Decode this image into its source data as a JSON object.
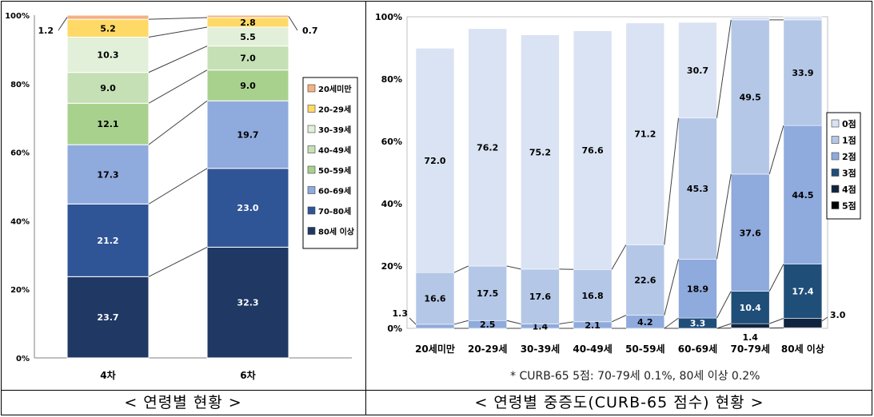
{
  "captions": {
    "left": "< 연령별 현황 >",
    "right": "< 연령별 중증도(CURB-65 점수) 현황 >"
  },
  "footnote": "* CURB-65 5점: 70-79세 0.1%, 80세 이상 0.2%",
  "chart_data": [
    {
      "type": "bar",
      "stacked": true,
      "ylim": [
        0,
        100
      ],
      "yticks": [
        "0%",
        "20%",
        "40%",
        "60%",
        "80%",
        "100%"
      ],
      "categories": [
        "4차",
        "6차"
      ],
      "legend_position": "right",
      "series": [
        {
          "name": "80세 이상",
          "color": "#1f3864",
          "values": [
            23.7,
            32.3
          ],
          "labels": [
            "23.7",
            "32.3"
          ]
        },
        {
          "name": "70-80세",
          "color": "#2f5597",
          "values": [
            21.2,
            23.0
          ],
          "labels": [
            "21.2",
            "23.0"
          ]
        },
        {
          "name": "60-69세",
          "color": "#8faadc",
          "values": [
            17.3,
            19.7
          ],
          "labels": [
            "17.3",
            "19.7"
          ]
        },
        {
          "name": "50-59세",
          "color": "#a9d18e",
          "values": [
            12.1,
            9.0
          ],
          "labels": [
            "12.1",
            "9.0"
          ]
        },
        {
          "name": "40-49세",
          "color": "#c5e0b4",
          "values": [
            9.0,
            7.0
          ],
          "labels": [
            "9.0",
            "7.0"
          ]
        },
        {
          "name": "30-39세",
          "color": "#e2f0d9",
          "values": [
            10.3,
            5.5
          ],
          "labels": [
            "10.3",
            "5.5"
          ]
        },
        {
          "name": "20-29세",
          "color": "#ffd966",
          "values": [
            5.2,
            2.8
          ],
          "labels": [
            "5.2",
            "2.8"
          ]
        },
        {
          "name": "20세미만",
          "color": "#f4b183",
          "values": [
            1.2,
            0.7
          ],
          "labels": [
            "",
            ""
          ]
        }
      ],
      "outside_labels": [
        {
          "series": "20세미만",
          "category": "4차",
          "text": "1.2",
          "side": "left"
        },
        {
          "series": "20세미만",
          "category": "6차",
          "text": "0.7",
          "side": "right"
        }
      ]
    },
    {
      "type": "bar",
      "stacked": true,
      "ylim": [
        0,
        100
      ],
      "yticks": [
        "0%",
        "20%",
        "40%",
        "60%",
        "80%",
        "100%"
      ],
      "categories": [
        "20세미만",
        "20-29세",
        "30-39세",
        "40-49세",
        "50-59세",
        "60-69세",
        "70-79세",
        "80세 이상"
      ],
      "legend_position": "right",
      "series": [
        {
          "name": "5점",
          "color": "#000000",
          "values": [
            0,
            0,
            0,
            0,
            0,
            0,
            0.1,
            0.2
          ],
          "labels": [
            "",
            "",
            "",
            "",
            "",
            "",
            "",
            ""
          ]
        },
        {
          "name": "4점",
          "color": "#10243f",
          "values": [
            0,
            0,
            0,
            0,
            0,
            0,
            1.4,
            3.0
          ],
          "labels": [
            "",
            "",
            "",
            "",
            "",
            "",
            "",
            ""
          ]
        },
        {
          "name": "3점",
          "color": "#1f4e79",
          "values": [
            0,
            0,
            0,
            0,
            0,
            3.3,
            10.4,
            17.4
          ],
          "labels": [
            "",
            "",
            "",
            "",
            "",
            "3.3",
            "10.4",
            "17.4"
          ]
        },
        {
          "name": "2점",
          "color": "#8faadc",
          "values": [
            1.3,
            2.5,
            1.4,
            2.1,
            4.2,
            18.9,
            37.6,
            44.5
          ],
          "labels": [
            "",
            "2.5",
            "1.4",
            "2.1",
            "4.2",
            "18.9",
            "37.6",
            "44.5"
          ]
        },
        {
          "name": "1점",
          "color": "#b4c7e7",
          "values": [
            16.6,
            17.5,
            17.6,
            16.8,
            22.6,
            45.3,
            49.5,
            33.9
          ],
          "labels": [
            "16.6",
            "17.5",
            "17.6",
            "16.8",
            "22.6",
            "45.3",
            "49.5",
            "33.9"
          ]
        },
        {
          "name": "0점",
          "color": "#dae3f3",
          "values": [
            72.0,
            76.2,
            75.2,
            76.6,
            71.2,
            30.7,
            0.9,
            1.0
          ],
          "labels": [
            "72.0",
            "76.2",
            "75.2",
            "76.6",
            "71.2",
            "30.7",
            "",
            ""
          ]
        }
      ],
      "outside_labels": [
        {
          "category": "20세미만",
          "text": "1.3",
          "side": "left"
        },
        {
          "category": "70-79세",
          "text": "1.4",
          "side": "below"
        },
        {
          "category": "80세 이상",
          "text": "3.0",
          "side": "right"
        }
      ]
    }
  ]
}
